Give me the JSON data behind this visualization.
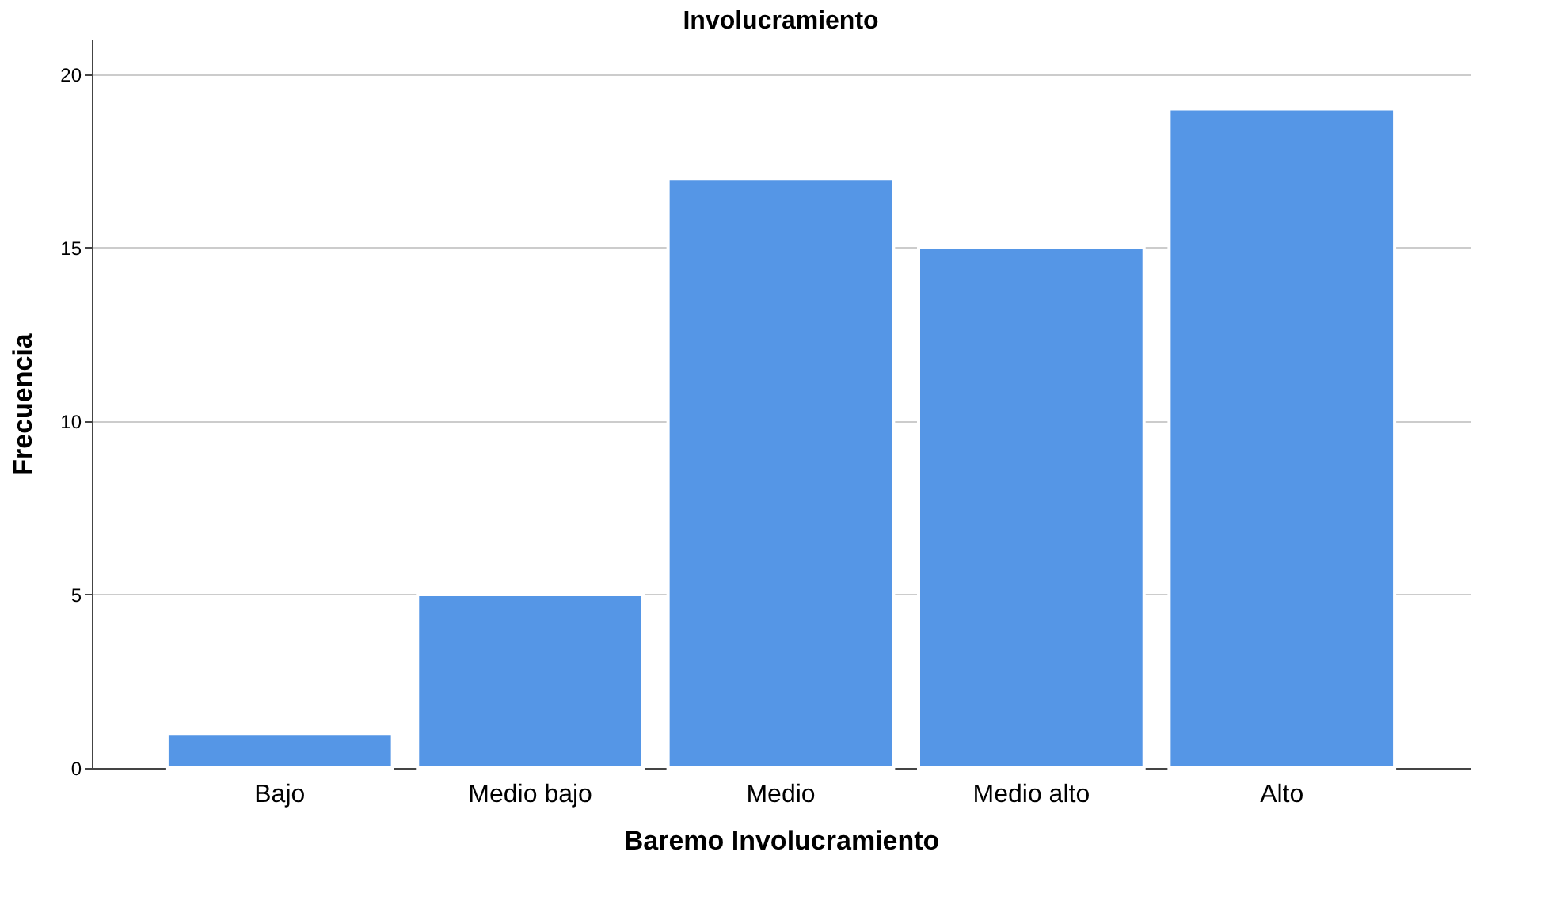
{
  "chart_data": {
    "type": "bar",
    "title": "Involucramiento",
    "xlabel": "Baremo Involucramiento",
    "ylabel": "Frecuencia",
    "categories": [
      "Bajo",
      "Medio bajo",
      "Medio",
      "Medio alto",
      "Alto"
    ],
    "values": [
      1,
      5,
      17,
      15,
      19
    ],
    "color": "#5596e6",
    "ylim": [
      0,
      21
    ],
    "yticks": [
      0,
      5,
      10,
      15,
      20
    ],
    "grid": "y"
  }
}
